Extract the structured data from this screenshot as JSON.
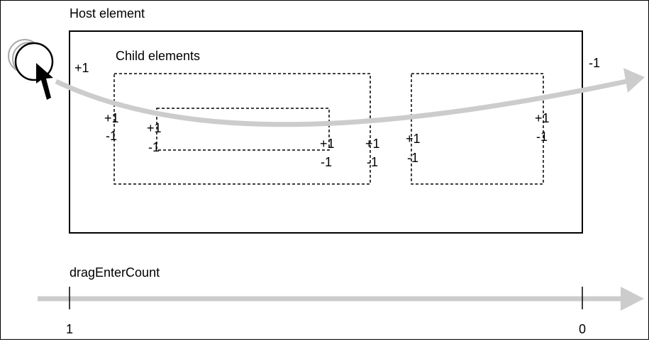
{
  "diagram": {
    "host_label": "Host element",
    "child_label": "Child elements",
    "counter_label": "dragEnterCount",
    "counter_start": "1",
    "counter_end": "0",
    "host_enter": "+1",
    "host_leave": "-1",
    "events": {
      "c1_left_enter": "+1",
      "c1_left_leave": "-1",
      "c2_left_enter": "+1",
      "c2_left_leave": "-1",
      "c2_right_enter": "+1",
      "c2_right_leave": "-1",
      "c1_right_enter": "+1",
      "c1_right_leave": "-1",
      "c3_left_enter": "+1",
      "c3_left_leave": "-1",
      "c3_right_enter": "+1",
      "c3_right_leave": "-1"
    }
  },
  "colors": {
    "path_arrow": "#cccccc",
    "lines": "#000000",
    "ghost_cursor": "#999999"
  },
  "icons": {
    "cursor": "mouse-pointer-icon"
  }
}
